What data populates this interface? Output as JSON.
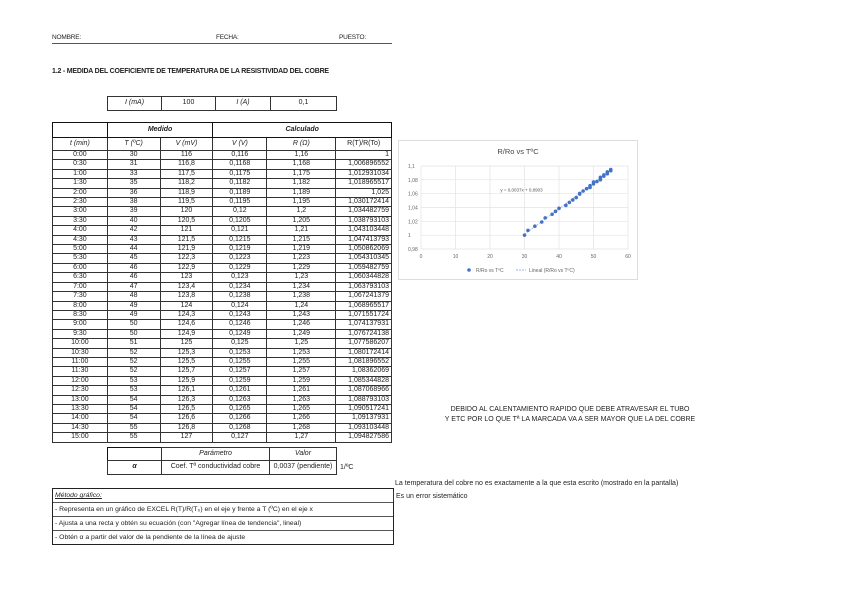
{
  "header": {
    "nombre": "NOMBRE:",
    "fecha": "FECHA:",
    "puesto": "PUESTO:"
  },
  "title": "1.2 - MEDIDA DEL COEFICIENTE DE TEMPERATURA DE LA RESISTIVIDAD DEL COBRE",
  "current": {
    "label_ma": "I (mA)",
    "value_ma": "100",
    "label_a": "I (A)",
    "value_a": "0,1"
  },
  "table": {
    "group_medido": "Medido",
    "group_calculado": "Calculado",
    "columns": [
      "t (min)",
      "T (ºC)",
      "V (mV)",
      "V (V)",
      "R (Ω)",
      "R(T)/R(To)"
    ],
    "rows": [
      [
        "0:00",
        "30",
        "116",
        "0,116",
        "1,16",
        "1"
      ],
      [
        "0:30",
        "31",
        "116,8",
        "0,1168",
        "1,168",
        "1,006896552"
      ],
      [
        "1:00",
        "33",
        "117,5",
        "0,1175",
        "1,175",
        "1,012931034"
      ],
      [
        "1:30",
        "35",
        "118,2",
        "0,1182",
        "1,182",
        "1,018965517"
      ],
      [
        "2:00",
        "36",
        "118,9",
        "0,1189",
        "1,189",
        "1,025"
      ],
      [
        "2:30",
        "38",
        "119,5",
        "0,1195",
        "1,195",
        "1,030172414"
      ],
      [
        "3:00",
        "39",
        "120",
        "0,12",
        "1,2",
        "1,034482759"
      ],
      [
        "3:30",
        "40",
        "120,5",
        "0,1205",
        "1,205",
        "1,038793103"
      ],
      [
        "4:00",
        "42",
        "121",
        "0,121",
        "1,21",
        "1,043103448"
      ],
      [
        "4:30",
        "43",
        "121,5",
        "0,1215",
        "1,215",
        "1,047413793"
      ],
      [
        "5:00",
        "44",
        "121,9",
        "0,1219",
        "1,219",
        "1,050862069"
      ],
      [
        "5:30",
        "45",
        "122,3",
        "0,1223",
        "1,223",
        "1,054310345"
      ],
      [
        "6:00",
        "46",
        "122,9",
        "0,1229",
        "1,229",
        "1,059482759"
      ],
      [
        "6:30",
        "46",
        "123",
        "0,123",
        "1,23",
        "1,060344828"
      ],
      [
        "7:00",
        "47",
        "123,4",
        "0,1234",
        "1,234",
        "1,063793103"
      ],
      [
        "7:30",
        "48",
        "123,8",
        "0,1238",
        "1,238",
        "1,067241379"
      ],
      [
        "8:00",
        "49",
        "124",
        "0,124",
        "1,24",
        "1,068965517"
      ],
      [
        "8:30",
        "49",
        "124,3",
        "0,1243",
        "1,243",
        "1,071551724"
      ],
      [
        "9:00",
        "50",
        "124,6",
        "0,1246",
        "1,246",
        "1,074137931"
      ],
      [
        "9:30",
        "50",
        "124,9",
        "0,1249",
        "1,249",
        "1,076724138"
      ],
      [
        "10:00",
        "51",
        "125",
        "0,125",
        "1,25",
        "1,077586207"
      ],
      [
        "10:30",
        "52",
        "125,3",
        "0,1253",
        "1,253",
        "1,080172414"
      ],
      [
        "11:00",
        "52",
        "125,5",
        "0,1255",
        "1,255",
        "1,081896552"
      ],
      [
        "11:30",
        "52",
        "125,7",
        "0,1257",
        "1,257",
        "1,08362069"
      ],
      [
        "12:00",
        "53",
        "125,9",
        "0,1259",
        "1,259",
        "1,085344828"
      ],
      [
        "12:30",
        "53",
        "126,1",
        "0,1261",
        "1,261",
        "1,087068966"
      ],
      [
        "13:00",
        "54",
        "126,3",
        "0,1263",
        "1,263",
        "1,088793103"
      ],
      [
        "13:30",
        "54",
        "126,5",
        "0,1265",
        "1,265",
        "1,090517241"
      ],
      [
        "14:00",
        "54",
        "126,6",
        "0,1266",
        "1,266",
        "1,09137931"
      ],
      [
        "14:30",
        "55",
        "126,8",
        "0,1268",
        "1,268",
        "1,093103448"
      ],
      [
        "15:00",
        "55",
        "127",
        "0,127",
        "1,27",
        "1,094827586"
      ]
    ]
  },
  "param": {
    "header_param": "Parámetro",
    "header_valor": "Valor",
    "symbol": "α",
    "name": "Coef. Tª conductividad cobre",
    "value": "0,0037 (pendiente)",
    "unit": "1/ºC"
  },
  "method": {
    "title": "Método gráfico:",
    "steps": [
      "- Representa en un gráfico de EXCEL R(T)/R(T₀) en el eje y frente a T (ºC) en el eje x",
      "- Ajusta a una recta y obtén su ecuación (con \"Agregar línea de tendencia\", lineal)",
      "- Obtén α a partir del valor de la pendiente de la línea de ajuste"
    ]
  },
  "note1": [
    "DEBIDO AL CALENTAMIENTO RAPIDO QUE DEBE ATRAVESAR EL TUBO",
    "Y ETC POR LO QUE Tª LA MARCADA VA A SER MAYOR QUE LA DEL COBRE"
  ],
  "note2": "La temperatura del cobre no es exactamente a la que esta escrito (mostrado en la pantalla)",
  "note3": "Es un error sistemático",
  "chart_data": {
    "type": "scatter",
    "title": "R/Ro vs TºC",
    "xlim": [
      0,
      60
    ],
    "ylim": [
      0.98,
      1.1
    ],
    "xticks": [
      "0",
      "10",
      "20",
      "30",
      "40",
      "50",
      "60"
    ],
    "yticks": [
      "0,98",
      "1",
      "1,02",
      "1,04",
      "1,06",
      "1,08",
      "1,1"
    ],
    "grid": true,
    "legend": "bottom",
    "equation": "y = 0,0037x + 0,8903",
    "series": [
      {
        "name": "R/Ro vs TºC",
        "color": "#4472c4"
      },
      {
        "name": "Lineal (R/Ro vs TºC)",
        "color": "#9db6e3"
      }
    ],
    "trend": {
      "slope": 0.0037,
      "intercept": 0.8903
    }
  }
}
